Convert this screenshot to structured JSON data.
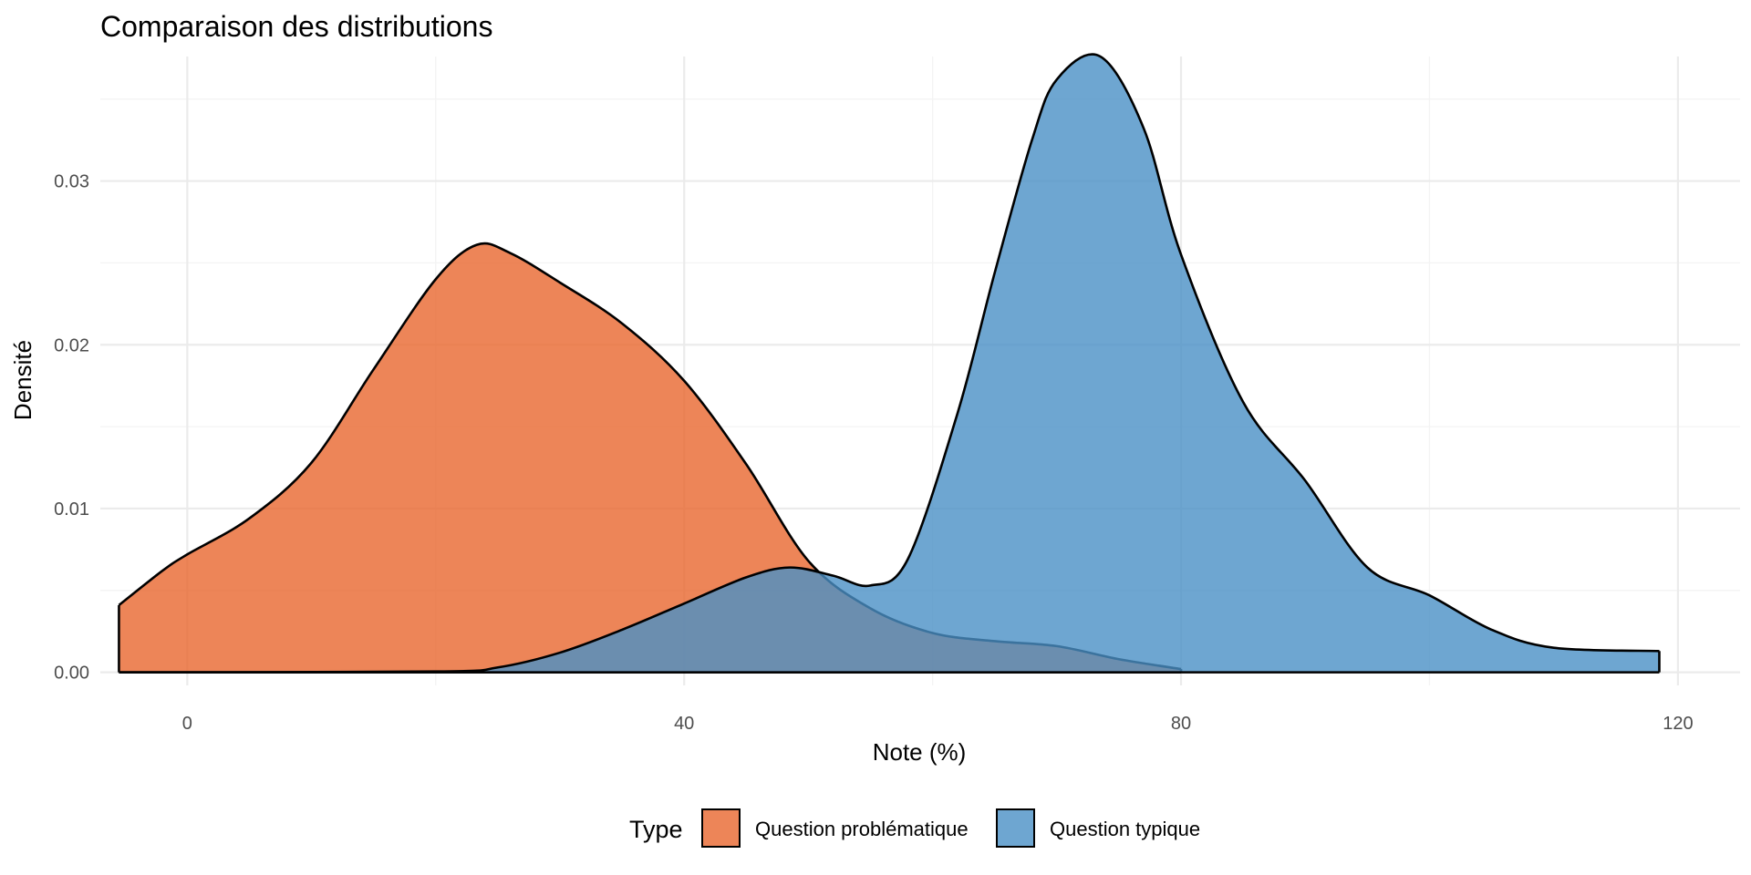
{
  "chart_data": {
    "type": "area",
    "title": "Comparaison des distributions",
    "xlabel": "Note (%)",
    "ylabel": "Densité",
    "xlim": [
      -7,
      125
    ],
    "ylim": [
      -0.0008,
      0.0376
    ],
    "x_ticks": [
      0,
      40,
      80,
      120
    ],
    "x_tick_labels": [
      "0",
      "40",
      "80",
      "120"
    ],
    "y_ticks": [
      0,
      0.01,
      0.02,
      0.03
    ],
    "y_tick_labels": [
      "0.00",
      "0.01",
      "0.02",
      "0.03"
    ],
    "grid": true,
    "legend": {
      "title": "Type",
      "position": "bottom"
    },
    "series": [
      {
        "name": "Question problématique",
        "color": "#E8672E",
        "x": [
          -5.5,
          -2,
          0,
          5,
          10,
          15,
          20,
          23.3,
          26,
          30,
          35,
          40,
          45,
          50,
          55,
          60,
          65,
          70,
          75,
          80
        ],
        "y": [
          0.0041,
          0.0062,
          0.0072,
          0.0094,
          0.0128,
          0.0185,
          0.024,
          0.0261,
          0.0256,
          0.0238,
          0.0213,
          0.0178,
          0.0127,
          0.0068,
          0.0039,
          0.0024,
          0.0019,
          0.0016,
          0.0008,
          0.0002
        ]
      },
      {
        "name": "Question typique",
        "color": "#4A90C6",
        "x": [
          -5.5,
          20,
          25,
          30,
          35,
          40,
          45,
          48.5,
          52,
          55,
          58,
          62,
          65,
          68,
          70,
          73.5,
          77,
          80,
          85,
          90,
          95,
          100,
          105,
          110,
          118.5
        ],
        "y": [
          0,
          5e-05,
          0.0003,
          0.0012,
          0.0026,
          0.0042,
          0.0058,
          0.0064,
          0.0059,
          0.0053,
          0.0069,
          0.0158,
          0.0244,
          0.0325,
          0.0362,
          0.0376,
          0.0332,
          0.0255,
          0.0165,
          0.0117,
          0.0064,
          0.0047,
          0.0026,
          0.0015,
          0.0013
        ]
      }
    ]
  }
}
